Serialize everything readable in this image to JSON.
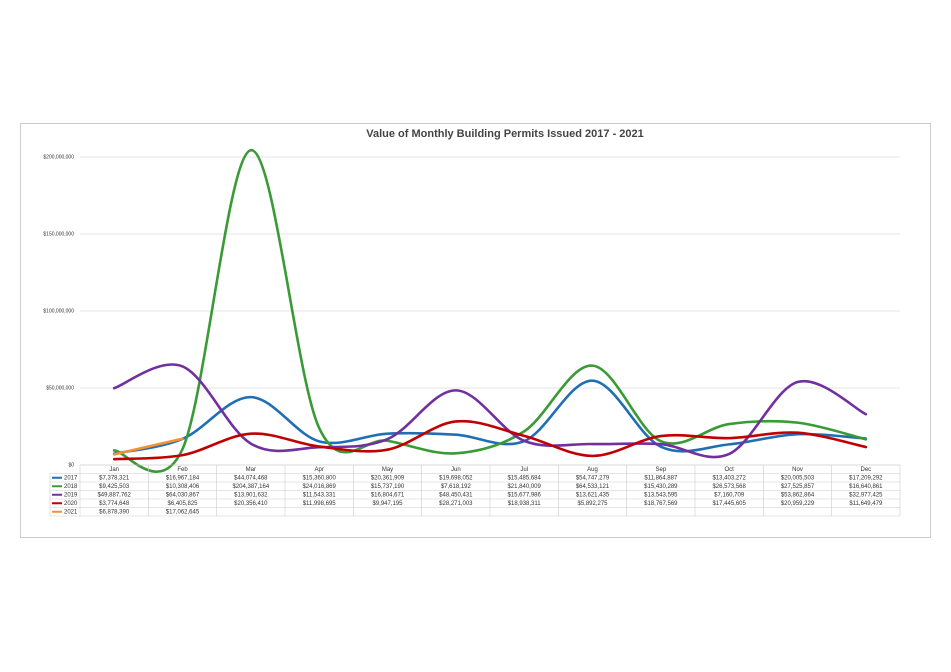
{
  "chart_data": {
    "type": "line",
    "title": "Value of Monthly Building Permits Issued 2017 - 2021",
    "categories": [
      "Jan",
      "Feb",
      "Mar",
      "Apr",
      "May",
      "Jun",
      "Jul",
      "Aug",
      "Sep",
      "Oct",
      "Nov",
      "Dec"
    ],
    "series": [
      {
        "name": "2017",
        "color": "#1f6fb5",
        "values": [
          7378321,
          16967184,
          44074468,
          15360800,
          20361909,
          19698052,
          15485684,
          54747279,
          11864887,
          13403272,
          20005503,
          17209292
        ],
        "value_labels": [
          "$7,378,321",
          "$16,967,184",
          "$44,074,468",
          "$15,360,800",
          "$20,361,909",
          "$19,698,052",
          "$15,485,684",
          "$54,747,279",
          "$11,864,887",
          "$13,403,272",
          "$20,005,503",
          "$17,209,292"
        ]
      },
      {
        "name": "2018",
        "color": "#3a9a35",
        "values": [
          9425503,
          10308406,
          204387164,
          24016869,
          15737190,
          7618192,
          21840009,
          64533121,
          15430289,
          26573568,
          27525857,
          16640861
        ],
        "value_labels": [
          "$9,425,503",
          "$10,308,406",
          "$204,387,164",
          "$24,016,869",
          "$15,737,190",
          "$7,618,192",
          "$21,840,009",
          "$64,533,121",
          "$15,430,289",
          "$26,573,568",
          "$27,525,857",
          "$16,640,861"
        ]
      },
      {
        "name": "2019",
        "color": "#7030a0",
        "values": [
          49887762,
          64030867,
          13901632,
          11543331,
          16804671,
          48450431,
          15677986,
          13621435,
          13543595,
          7160709,
          53862864,
          32977425
        ],
        "value_labels": [
          "$49,887,762",
          "$64,030,867",
          "$13,901,632",
          "$11,543,331",
          "$16,804,671",
          "$48,450,431",
          "$15,677,986",
          "$13,621,435",
          "$13,543,595",
          "$7,160,709",
          "$53,862,864",
          "$32,977,425"
        ]
      },
      {
        "name": "2020",
        "color": "#c00000",
        "values": [
          3774648,
          6405825,
          20356410,
          11998695,
          9947195,
          28271003,
          18938311,
          5892275,
          18767569,
          17445605,
          20959229,
          11649479
        ],
        "value_labels": [
          "$3,774,648",
          "$6,405,825",
          "$20,356,410",
          "$11,998,695",
          "$9,947,195",
          "$28,271,003",
          "$18,938,311",
          "$5,892,275",
          "$18,767,569",
          "$17,445,605",
          "$20,959,229",
          "$11,649,479"
        ]
      },
      {
        "name": "2021",
        "color": "#f0903a",
        "values": [
          6878390,
          17062645,
          null,
          null,
          null,
          null,
          null,
          null,
          null,
          null,
          null,
          null
        ],
        "value_labels": [
          "$6,878,390",
          "$17,062,645",
          null,
          null,
          null,
          null,
          null,
          null,
          null,
          null,
          null,
          null
        ]
      }
    ],
    "ylim": [
      0,
      200000000
    ],
    "yticks": [
      {
        "value": 0,
        "label": "$0"
      },
      {
        "value": 50000000,
        "label": "$50,000,000"
      },
      {
        "value": 100000000,
        "label": "$100,000,000"
      },
      {
        "value": 150000000,
        "label": "$150,000,000"
      },
      {
        "value": 200000000,
        "label": "$200,000,000"
      }
    ],
    "grid": true
  }
}
